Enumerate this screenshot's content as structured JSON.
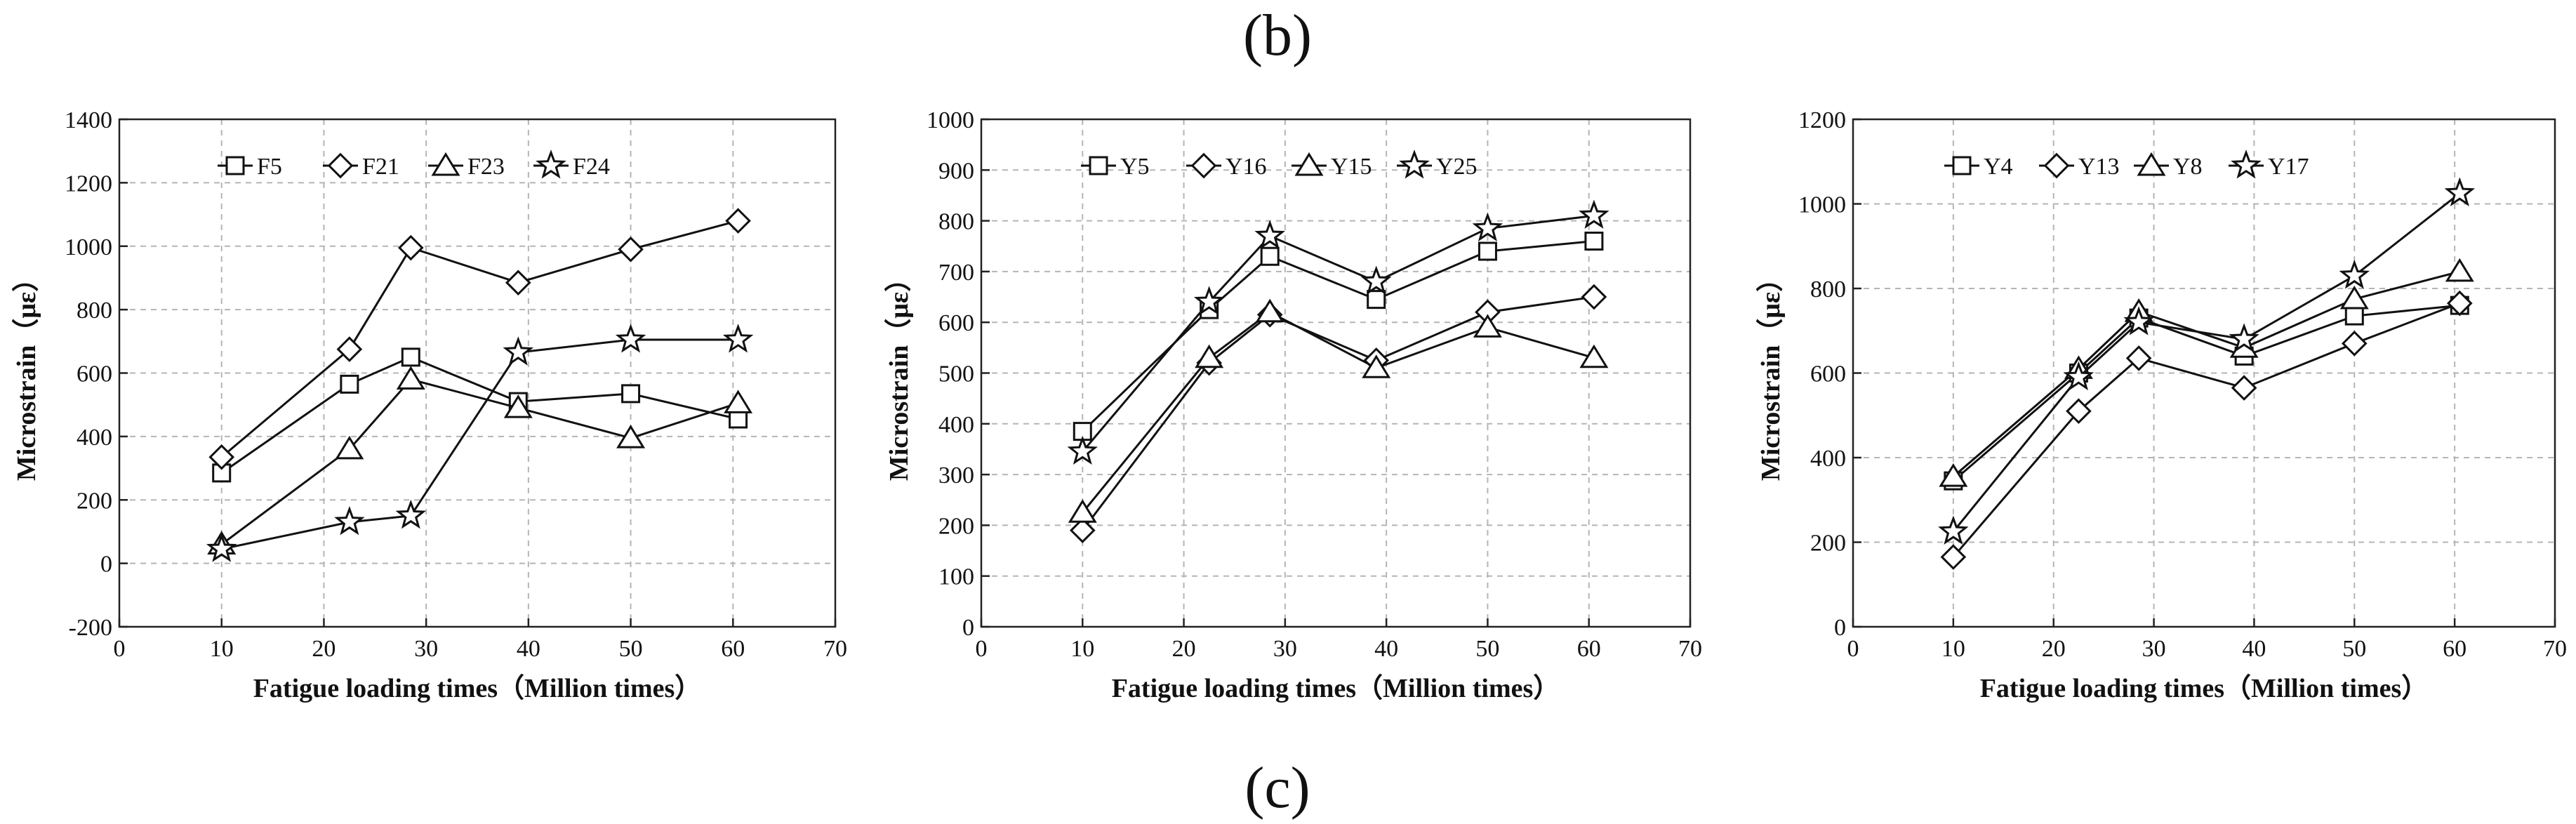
{
  "figure": {
    "label_top": "(b)",
    "label_bottom": "(c)"
  },
  "chart_data": [
    {
      "type": "line",
      "title": "",
      "xlabel": "Fatigue loading times（Million times）",
      "ylabel": "Microstrain（με）",
      "xlim": [
        0,
        70
      ],
      "ylim": [
        -200,
        1400
      ],
      "xticks": [
        0,
        10,
        20,
        30,
        40,
        50,
        60,
        70
      ],
      "yticks": [
        -200,
        0,
        200,
        400,
        600,
        800,
        1000,
        1200,
        1400
      ],
      "grid": true,
      "legend_position": "top",
      "x": [
        10,
        22.5,
        28.5,
        39,
        50,
        60.5
      ],
      "series": [
        {
          "name": "F5",
          "marker": "square",
          "values": [
            285,
            565,
            650,
            510,
            535,
            455
          ]
        },
        {
          "name": "F21",
          "marker": "diamond",
          "values": [
            335,
            675,
            995,
            885,
            990,
            1080
          ]
        },
        {
          "name": "F23",
          "marker": "triangle",
          "values": [
            60,
            360,
            580,
            490,
            395,
            505
          ]
        },
        {
          "name": "F24",
          "marker": "star",
          "values": [
            45,
            130,
            150,
            665,
            705,
            705
          ]
        }
      ]
    },
    {
      "type": "line",
      "title": "",
      "xlabel": "Fatigue loading times（Million times）",
      "ylabel": "Microstrain（με）",
      "xlim": [
        0,
        70
      ],
      "ylim": [
        0,
        1000
      ],
      "xticks": [
        0,
        10,
        20,
        30,
        40,
        50,
        60,
        70
      ],
      "yticks": [
        0,
        100,
        200,
        300,
        400,
        500,
        600,
        700,
        800,
        900,
        1000
      ],
      "grid": true,
      "legend_position": "top",
      "x": [
        10,
        22.5,
        28.5,
        39,
        50,
        60.5
      ],
      "series": [
        {
          "name": "Y5",
          "marker": "square",
          "values": [
            385,
            625,
            730,
            645,
            740,
            760
          ]
        },
        {
          "name": "Y16",
          "marker": "diamond",
          "values": [
            190,
            520,
            615,
            525,
            620,
            650
          ]
        },
        {
          "name": "Y15",
          "marker": "triangle",
          "values": [
            225,
            530,
            620,
            510,
            590,
            530
          ]
        },
        {
          "name": "Y25",
          "marker": "star",
          "values": [
            345,
            640,
            770,
            680,
            785,
            810
          ]
        }
      ]
    },
    {
      "type": "line",
      "title": "",
      "xlabel": "Fatigue loading times（Million times）",
      "ylabel": "Microstrain（με）",
      "xlim": [
        0,
        70
      ],
      "ylim": [
        0,
        1200
      ],
      "xticks": [
        0,
        10,
        20,
        30,
        40,
        50,
        60,
        70
      ],
      "yticks": [
        0,
        200,
        400,
        600,
        800,
        1000,
        1200
      ],
      "grid": true,
      "legend_position": "top",
      "x": [
        10,
        22.5,
        28.5,
        39,
        50,
        60.5
      ],
      "series": [
        {
          "name": "Y4",
          "marker": "square",
          "values": [
            345,
            600,
            730,
            640,
            735,
            760
          ]
        },
        {
          "name": "Y13",
          "marker": "diamond",
          "values": [
            165,
            510,
            635,
            565,
            670,
            765
          ]
        },
        {
          "name": "Y8",
          "marker": "triangle",
          "values": [
            355,
            610,
            745,
            660,
            775,
            840
          ]
        },
        {
          "name": "Y17",
          "marker": "star",
          "values": [
            225,
            590,
            720,
            680,
            830,
            1025
          ]
        }
      ]
    }
  ]
}
